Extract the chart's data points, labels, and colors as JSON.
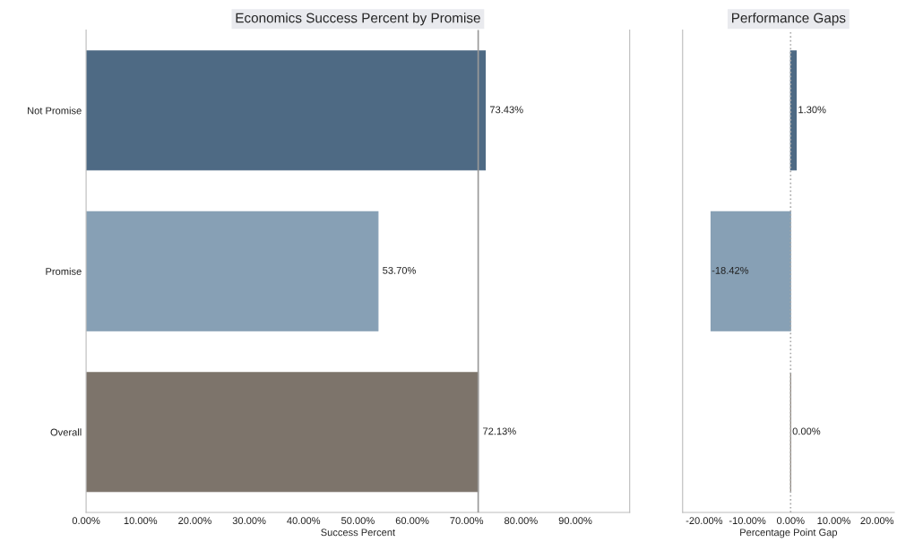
{
  "chart_data": [
    {
      "type": "bar",
      "orientation": "horizontal",
      "title": "Economics Success Percent by Promise",
      "xlabel": "Success Percent",
      "categories": [
        "Not Promise",
        "Promise",
        "Overall"
      ],
      "values": [
        73.43,
        53.7,
        72.13
      ],
      "colors": [
        "#4e6a84",
        "#87a0b5",
        "#7d746b"
      ],
      "value_labels": [
        "73.43%",
        "53.70%",
        "72.13%"
      ],
      "xlim": [
        0,
        100
      ],
      "xticks": [
        {
          "value": 0,
          "label": "0.00%"
        },
        {
          "value": 10,
          "label": "10.00%"
        },
        {
          "value": 20,
          "label": "20.00%"
        },
        {
          "value": 30,
          "label": "30.00%"
        },
        {
          "value": 40,
          "label": "40.00%"
        },
        {
          "value": 50,
          "label": "50.00%"
        },
        {
          "value": 60,
          "label": "60.00%"
        },
        {
          "value": 70,
          "label": "70.00%"
        },
        {
          "value": 80,
          "label": "80.00%"
        },
        {
          "value": 90,
          "label": "90.00%"
        }
      ],
      "ref_lines": [
        {
          "axis": "x",
          "value": 72.13,
          "color": "#999999",
          "line_style": "solid"
        }
      ],
      "grid": false,
      "legend": false
    },
    {
      "type": "bar",
      "orientation": "horizontal",
      "title": "Performance Gaps",
      "xlabel": "Percentage Point Gap",
      "categories": [
        null,
        null,
        null
      ],
      "values": [
        1.3,
        -18.42,
        0.0
      ],
      "colors": [
        "#4e6a84",
        "#87a0b5",
        "#7d746b"
      ],
      "value_labels": [
        "1.30%",
        "-18.42%",
        "0.00%"
      ],
      "xlim": [
        -25,
        24
      ],
      "xticks": [
        {
          "value": -20,
          "label": "-20.00%"
        },
        {
          "value": -10,
          "label": "-10.00%"
        },
        {
          "value": 0,
          "label": "0.00%"
        },
        {
          "value": 10,
          "label": "10.00%"
        },
        {
          "value": 20,
          "label": "20.00%"
        }
      ],
      "ref_lines": [
        {
          "axis": "x",
          "value": 0,
          "color": "#aaaaaa",
          "line_style": "dotted"
        }
      ],
      "tick_labels": "x",
      "grid": false,
      "legend": false
    }
  ]
}
